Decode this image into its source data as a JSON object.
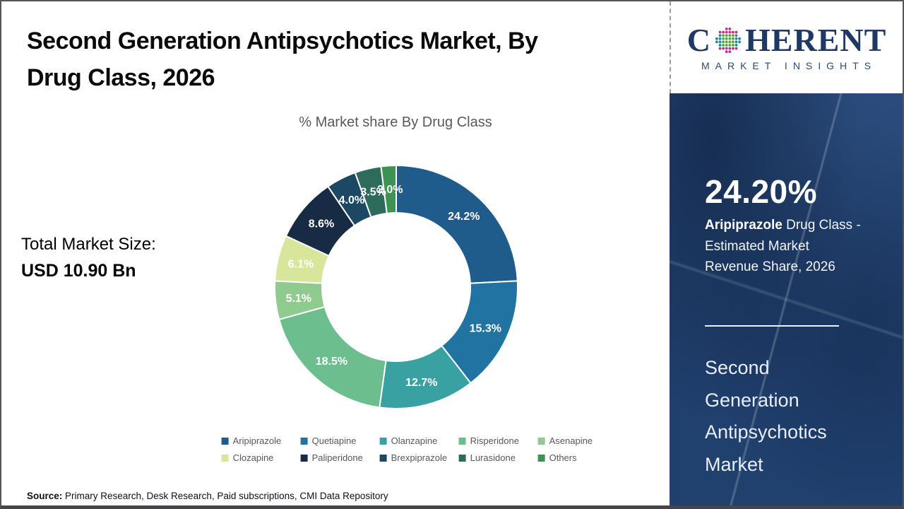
{
  "header": {
    "title_line1": "Second Generation Antipsychotics Market, By",
    "title_line2": "Drug Class, 2026"
  },
  "logo": {
    "brand_prefix": "C",
    "brand_suffix": "HERENT",
    "tagline": "MARKET INSIGHTS"
  },
  "left_panel": {
    "total_label": "Total Market Size:",
    "total_value": "USD 10.90 Bn"
  },
  "chart_data": {
    "type": "pie",
    "subtype": "donut",
    "title": "% Market share By Drug Class",
    "donut_hole_ratio": 0.61,
    "start_angle_deg": 0,
    "direction": "clockwise",
    "legend_position": "bottom",
    "categories": [
      "Aripiprazole",
      "Quetiapine",
      "Olanzapine",
      "Risperidone",
      "Asenapine",
      "Clozapine",
      "Paliperidone",
      "Brexpiprazole",
      "Lurasidone",
      "Others"
    ],
    "values": [
      24.2,
      15.3,
      12.7,
      18.5,
      5.1,
      6.1,
      8.6,
      4.0,
      3.5,
      2.0
    ],
    "labels": [
      "24.2%",
      "15.3%",
      "12.7%",
      "18.5%",
      "5.1%",
      "6.1%",
      "8.6%",
      "4.0%",
      "3.5%",
      "2.0%"
    ],
    "colors": [
      "#1F5C8C",
      "#2174A2",
      "#3AA1A3",
      "#6CBE8E",
      "#8FCA8E",
      "#D7E69B",
      "#172B44",
      "#1D4864",
      "#2D6B5B",
      "#3E9253"
    ]
  },
  "sidebar": {
    "highlight_value": "24.20%",
    "highlight_line1_bold": "Aripiprazole",
    "highlight_line1_rest": " Drug Class -",
    "highlight_line2": "Estimated Market",
    "highlight_line3": "Revenue Share, 2026",
    "market_title": "Second Generation Antipsychotics Market",
    "panel_color": "#20406E"
  },
  "footer": {
    "source_label": "Source:",
    "source_text": " Primary Research, Desk Research, Paid subscriptions, CMI Data Repository"
  }
}
